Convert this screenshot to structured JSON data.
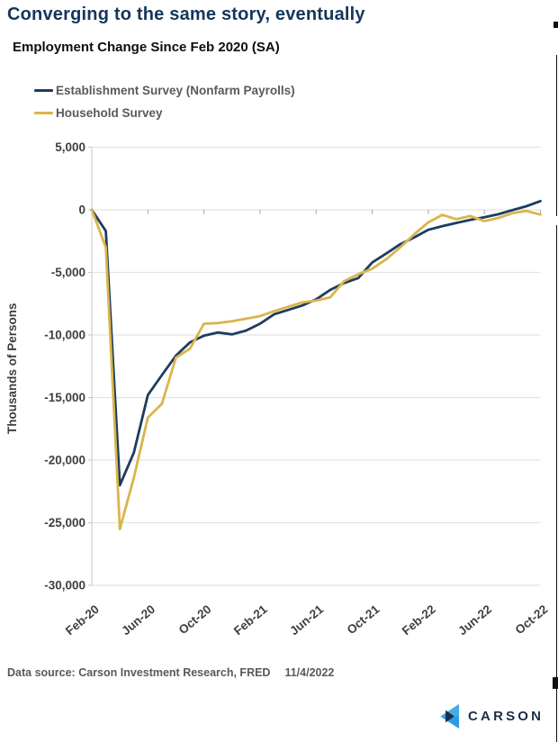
{
  "header": {
    "title": "Converging to the same story, eventually",
    "subtitle": "Employment Change Since Feb 2020 (SA)"
  },
  "legend": [
    {
      "label": "Establishment Survey (Nonfarm Payrolls)"
    },
    {
      "label": "Household Survey"
    }
  ],
  "chart_data": {
    "type": "line",
    "title": "Employment Change Since Feb 2020 (SA)",
    "xlabel": "",
    "ylabel": "Thousands of Persons",
    "ylim": [
      -30000,
      5000
    ],
    "grid": "horizontal",
    "legend_position": "top-left",
    "yticks": [
      {
        "value": 5000,
        "label": "5,000"
      },
      {
        "value": 0,
        "label": "0"
      },
      {
        "value": -5000,
        "label": "-5,000"
      },
      {
        "value": -10000,
        "label": "-10,000"
      },
      {
        "value": -15000,
        "label": "-15,000"
      },
      {
        "value": -20000,
        "label": "-20,000"
      },
      {
        "value": -25000,
        "label": "-25,000"
      },
      {
        "value": -30000,
        "label": "-30,000"
      }
    ],
    "categories": [
      "Feb-20",
      "Mar-20",
      "Apr-20",
      "May-20",
      "Jun-20",
      "Jul-20",
      "Aug-20",
      "Sep-20",
      "Oct-20",
      "Nov-20",
      "Dec-20",
      "Jan-21",
      "Feb-21",
      "Mar-21",
      "Apr-21",
      "May-21",
      "Jun-21",
      "Jul-21",
      "Aug-21",
      "Sep-21",
      "Oct-21",
      "Nov-21",
      "Dec-21",
      "Jan-22",
      "Feb-22",
      "Mar-22",
      "Apr-22",
      "May-22",
      "Jun-22",
      "Jul-22",
      "Aug-22",
      "Sep-22",
      "Oct-22"
    ],
    "xtick_every": 4,
    "xtick_labels": [
      "Feb-20",
      "Jun-20",
      "Oct-20",
      "Feb-21",
      "Jun-21",
      "Oct-21",
      "Feb-22",
      "Jun-22",
      "Oct-22"
    ],
    "series": [
      {
        "name": "Establishment Survey (Nonfarm Payrolls)",
        "color": "#1d3c5f",
        "values": [
          0,
          -1700,
          -22000,
          -19400,
          -14800,
          -13200,
          -11650,
          -10600,
          -10050,
          -9800,
          -9950,
          -9650,
          -9100,
          -8350,
          -8000,
          -7650,
          -7150,
          -6400,
          -5850,
          -5450,
          -4200,
          -3500,
          -2750,
          -2200,
          -1600,
          -1300,
          -1050,
          -800,
          -600,
          -350,
          -30,
          290,
          700
        ]
      },
      {
        "name": "Household Survey",
        "color": "#d9b54c",
        "values": [
          0,
          -3000,
          -25500,
          -21400,
          -16600,
          -15500,
          -11800,
          -11100,
          -9100,
          -9050,
          -8900,
          -8700,
          -8500,
          -8100,
          -7750,
          -7400,
          -7250,
          -7000,
          -5700,
          -5150,
          -4700,
          -3950,
          -3000,
          -1950,
          -1000,
          -400,
          -750,
          -500,
          -900,
          -650,
          -270,
          -90,
          -380
        ]
      }
    ]
  },
  "footer": {
    "source": "Data source: Carson Investment Research, FRED",
    "date": "11/4/2022"
  },
  "brand": {
    "name": "CARSON",
    "colors": {
      "light_blue": "#47abe8",
      "mid_blue": "#2a9ce5",
      "navy": "#1b2e4a"
    }
  }
}
